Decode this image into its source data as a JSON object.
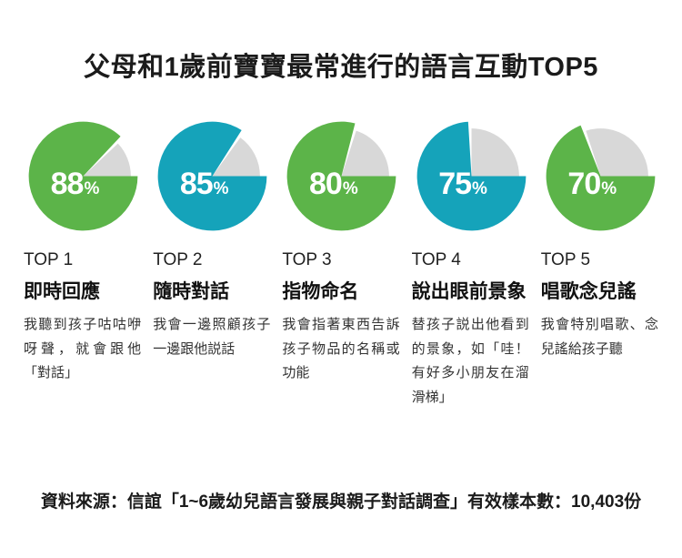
{
  "page": {
    "title": "父母和1歲前寶寶最常進行的語言互動TOP5",
    "source_note": "資料來源：信誼「1~6歲幼兒語言發展與親子對話調查」有效樣本數：10,403份"
  },
  "colors": {
    "green": "#5cb449",
    "teal": "#15a3ba",
    "remainder_gray": "#d8d8d8",
    "percent_text": "#ffffff"
  },
  "percent_symbol": "%",
  "items": [
    {
      "rank_label": "TOP 1",
      "value": 88,
      "color_name": "green",
      "title": "即時回應",
      "description": "我聽到孩子咕咕咿呀聲，就會跟他「對話」"
    },
    {
      "rank_label": "TOP 2",
      "value": 85,
      "color_name": "teal",
      "title": "隨時對話",
      "description": "我會一邊照顧孩子一邊跟他説話"
    },
    {
      "rank_label": "TOP 3",
      "value": 80,
      "color_name": "green",
      "title": "指物命名",
      "description": "我會指著東西告訴孩子物品的名稱或功能"
    },
    {
      "rank_label": "TOP 4",
      "value": 75,
      "color_name": "teal",
      "title": "說出眼前景象",
      "description": "替孩子説出他看到的景象，如「哇！有好多小朋友在溜滑梯」"
    },
    {
      "rank_label": "TOP 5",
      "value": 70,
      "color_name": "green",
      "title": "唱歌念兒謠",
      "description": "我會特別唱歌、念兒謠給孩子聽"
    }
  ],
  "chart_data": {
    "type": "pie",
    "title": "父母和1歲前寶寶最常進行的語言互動TOP5",
    "categories": [
      "即時回應",
      "隨時對話",
      "指物命名",
      "說出眼前景象",
      "唱歌念兒謠"
    ],
    "values": [
      88,
      85,
      80,
      75,
      70
    ],
    "unit": "%",
    "rank_labels": [
      "TOP 1",
      "TOP 2",
      "TOP 3",
      "TOP 4",
      "TOP 5"
    ],
    "slice_colors": [
      "#5cb449",
      "#15a3ba",
      "#5cb449",
      "#15a3ba",
      "#5cb449"
    ],
    "remainder_color": "#d8d8d8",
    "legend_position": "none",
    "source": "資料來源：信誼「1~6歲幼兒語言發展與親子對話調查」有效樣本數：10,403份"
  }
}
